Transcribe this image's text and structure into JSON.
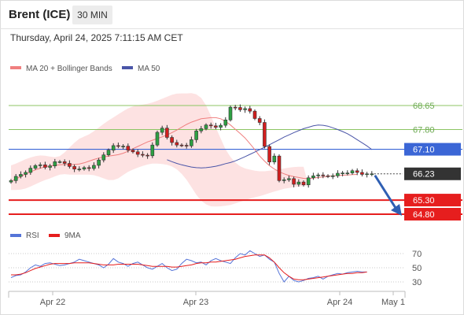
{
  "header": {
    "instrument": "Brent (ICE)",
    "timeframe": "30 MIN",
    "datetime": "Thursday, April 24, 2025 7:11:15 AM CET"
  },
  "legend": {
    "ma20_label": "MA 20 + Bollinger Bands",
    "ma50_label": "MA 50",
    "rsi_label": "RSI",
    "rsi_ma_label": "9MA"
  },
  "colors": {
    "ma20": "#f07f7f",
    "ma50": "#4a55a8",
    "bands_fill": "#fde2e2",
    "bull": "#2ea043",
    "bear": "#d21f1f",
    "support": "#e61e1e",
    "pivot": "#3b66d6",
    "resistance": "#8cc563",
    "current_tag": "#333333",
    "rsi": "#5574d8",
    "rsi_ma": "#e61e1e",
    "arrow": "#2f5fb3"
  },
  "chart_data": [
    {
      "type": "candlestick",
      "title": "",
      "x_ticks": [
        "Apr 22",
        "Apr 23",
        "Apr 24",
        "May 1"
      ],
      "ylim": [
        64.6,
        68.85
      ],
      "levels": [
        {
          "kind": "resistance",
          "value": 68.65,
          "label": "68.65"
        },
        {
          "kind": "resistance",
          "value": 67.8,
          "label": "67.80"
        },
        {
          "kind": "pivot",
          "value": 67.1,
          "label": "67.10"
        },
        {
          "kind": "support",
          "value": 65.3,
          "label": "65.30"
        },
        {
          "kind": "support",
          "value": 64.8,
          "label": "64.80"
        }
      ],
      "current_price": {
        "value": 66.23,
        "label": "66.23"
      },
      "forecast_arrow": {
        "from": 66.23,
        "to": 64.8
      },
      "closes": [
        65.99,
        66.14,
        66.21,
        66.28,
        66.43,
        66.52,
        66.55,
        66.46,
        66.51,
        66.66,
        66.66,
        66.6,
        66.49,
        66.4,
        66.4,
        66.45,
        66.42,
        66.53,
        66.72,
        66.9,
        67.07,
        67.23,
        67.21,
        67.21,
        67.07,
        67.01,
        66.92,
        66.89,
        66.87,
        67.25,
        67.7,
        67.85,
        67.52,
        67.34,
        67.25,
        67.24,
        67.22,
        67.44,
        67.75,
        67.83,
        67.96,
        67.93,
        67.88,
        67.95,
        68.14,
        68.59,
        68.58,
        68.5,
        68.54,
        68.45,
        68.19,
        68.05,
        67.2,
        66.65,
        66.86,
        65.99,
        66.02,
        66.06,
        65.86,
        65.94,
        65.84,
        66.09,
        66.16,
        66.19,
        66.16,
        66.14,
        66.16,
        66.25,
        66.26,
        66.26,
        66.34,
        66.28,
        66.21,
        66.23,
        66.23
      ],
      "ma20": [
        65.96,
        66.05,
        66.13,
        66.22,
        66.3,
        66.37,
        66.43,
        66.48,
        66.51,
        66.53,
        66.55,
        66.56,
        66.56,
        66.56,
        66.58,
        66.62,
        66.68,
        66.74,
        66.79,
        66.83,
        66.86,
        66.88,
        66.91,
        66.96,
        67.03,
        67.12,
        67.2,
        67.28,
        67.36,
        67.42,
        67.48,
        67.54,
        67.61,
        67.69,
        67.78,
        67.88,
        67.98,
        68.06,
        68.12,
        68.18,
        68.2,
        68.22,
        68.22,
        68.18,
        68.09,
        67.96,
        67.81,
        67.66,
        67.5,
        67.3,
        67.09,
        66.86,
        66.68,
        66.52,
        66.4,
        66.3,
        66.23,
        66.17,
        66.13,
        66.1,
        66.07,
        66.06,
        66.08,
        66.1,
        66.12,
        66.14,
        66.16,
        66.17,
        66.18,
        66.19,
        66.2,
        66.21
      ],
      "ma50": [
        66.73,
        66.66,
        66.6,
        66.55,
        66.51,
        66.47,
        66.45,
        66.44,
        66.45,
        66.47,
        66.5,
        66.54,
        66.59,
        66.63,
        66.69,
        66.76,
        66.84,
        66.92,
        67.0,
        67.09,
        67.17,
        67.26,
        67.35,
        67.44,
        67.53,
        67.61,
        67.69,
        67.76,
        67.83,
        67.88,
        67.93,
        67.96,
        67.95,
        67.92,
        67.86,
        67.8,
        67.73,
        67.65,
        67.55,
        67.44,
        67.33,
        67.22,
        67.09
      ],
      "bollinger_upper": [
        66.53,
        66.59,
        66.67,
        66.75,
        66.81,
        66.86,
        66.88,
        66.87,
        66.84,
        66.82,
        66.86,
        66.99,
        67.16,
        67.33,
        67.47,
        67.55,
        67.63,
        67.74,
        67.87,
        68.0,
        68.12,
        68.23,
        68.34,
        68.45,
        68.55,
        68.62,
        68.66,
        68.68,
        68.71,
        68.76,
        68.82,
        68.89,
        68.96,
        69.03,
        69.07,
        69.08,
        69.08,
        69.09,
        69.05,
        68.92,
        68.66,
        68.28,
        67.87,
        67.48,
        67.1,
        66.83,
        66.63,
        66.5,
        66.42,
        66.38,
        66.34,
        66.32,
        66.32,
        66.34,
        66.36,
        66.39,
        66.42,
        66.45,
        66.47,
        66.48,
        66.48
      ],
      "bollinger_lower": [
        65.66,
        65.66,
        65.67,
        65.71,
        65.78,
        65.86,
        65.94,
        66.01,
        66.07,
        66.14,
        66.2,
        66.22,
        66.2,
        66.2,
        66.2,
        66.2,
        66.2,
        66.18,
        66.13,
        66.07,
        66.01,
        66.01,
        66.07,
        66.19,
        66.3,
        66.38,
        66.45,
        66.51,
        66.56,
        66.59,
        66.59,
        66.58,
        66.55,
        66.49,
        66.39,
        66.23,
        66.02,
        65.76,
        65.49,
        65.28,
        65.15,
        65.08,
        65.07,
        65.08,
        65.1,
        65.13,
        65.18,
        65.24,
        65.3,
        65.35,
        65.4,
        65.44,
        65.49,
        65.55,
        65.6,
        65.65,
        65.7,
        65.73,
        65.76,
        65.78,
        65.8,
        65.82
      ]
    },
    {
      "type": "line",
      "title": "",
      "yticks": [
        30,
        50,
        70
      ],
      "ylim": [
        20,
        80
      ],
      "series": [
        {
          "name": "RSI",
          "values": [
            36,
            39,
            40,
            44,
            50,
            54,
            52,
            56,
            57,
            55,
            53,
            54,
            56,
            58,
            62,
            60,
            58,
            56,
            54,
            50,
            55,
            63,
            58,
            56,
            52,
            56,
            58,
            54,
            50,
            48,
            52,
            56,
            50,
            46,
            48,
            56,
            62,
            60,
            57,
            58,
            54,
            60,
            63,
            60,
            58,
            56,
            64,
            70,
            68,
            74,
            70,
            66,
            68,
            62,
            58,
            42,
            30,
            38,
            32,
            30,
            32,
            35,
            36,
            38,
            34,
            38,
            40,
            42,
            41,
            43,
            44,
            45,
            44,
            44
          ]
        },
        {
          "name": "9MA",
          "values": [
            40,
            40,
            41,
            43,
            46,
            49,
            51,
            53,
            55,
            56,
            56,
            56,
            56,
            57,
            57,
            57,
            57,
            56,
            55,
            54,
            54,
            54,
            55,
            55,
            55,
            55,
            55,
            54,
            53,
            52,
            52,
            52,
            52,
            51,
            51,
            52,
            53,
            54,
            56,
            57,
            57,
            58,
            58,
            59,
            60,
            61,
            62,
            64,
            66,
            67,
            68,
            68,
            68,
            64,
            58,
            50,
            43,
            38,
            34,
            33,
            33,
            34,
            35,
            36,
            37,
            38,
            39,
            40,
            41,
            42,
            42,
            43,
            43,
            44
          ]
        }
      ]
    }
  ]
}
